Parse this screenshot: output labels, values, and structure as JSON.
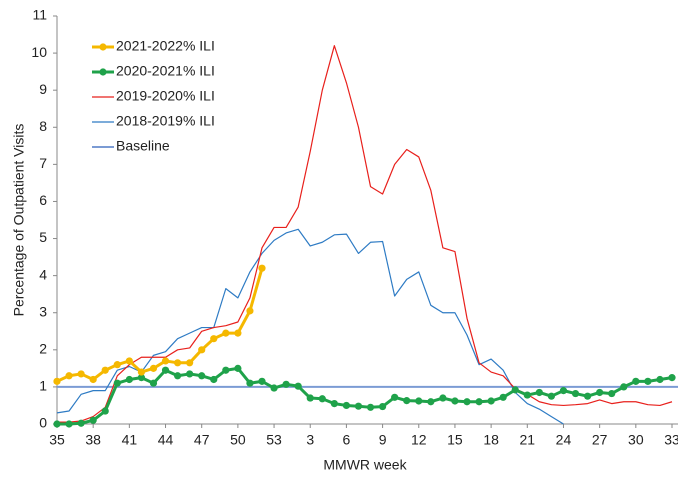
{
  "chart_data": {
    "type": "line",
    "x_label": "MMWR week",
    "y_label": "Percentage of Outpatient Visits",
    "categories": [
      "35",
      null,
      null,
      "38",
      null,
      null,
      "41",
      null,
      null,
      "44",
      null,
      null,
      "47",
      null,
      null,
      "50",
      null,
      null,
      "53",
      null,
      null,
      "3",
      null,
      null,
      "6",
      null,
      null,
      "9",
      null,
      null,
      "12",
      null,
      null,
      "15",
      null,
      null,
      "18",
      null,
      null,
      "21",
      null,
      null,
      "24",
      null,
      null,
      "27",
      null,
      null,
      "30",
      null,
      null,
      "33"
    ],
    "ylim": [
      0,
      11
    ],
    "yticks": [
      0,
      1,
      2,
      3,
      4,
      5,
      6,
      7,
      8,
      9,
      10,
      11
    ],
    "series": [
      {
        "name": "2021-2022% ILI",
        "color": "#f5b800",
        "markers": true,
        "width": 3,
        "values": [
          1.15,
          1.3,
          1.35,
          1.2,
          1.45,
          1.6,
          1.7,
          1.4,
          1.5,
          1.7,
          1.65,
          1.65,
          2.0,
          2.3,
          2.45,
          2.45,
          3.05,
          4.2,
          null,
          null,
          null,
          null,
          null,
          null,
          null,
          null,
          null,
          null,
          null,
          null,
          null,
          null,
          null,
          null,
          null,
          null,
          null,
          null,
          null,
          null,
          null,
          null,
          null,
          null,
          null,
          null,
          null,
          null,
          null,
          null,
          null,
          null
        ]
      },
      {
        "name": "2020-2021% ILI",
        "color": "#1fa24a",
        "markers": true,
        "width": 3,
        "values": [
          0,
          0,
          0.02,
          0.1,
          0.35,
          1.1,
          1.2,
          1.25,
          1.1,
          1.45,
          1.3,
          1.35,
          1.3,
          1.2,
          1.45,
          1.5,
          1.1,
          1.15,
          0.97,
          1.07,
          1.02,
          0.7,
          0.68,
          0.55,
          0.5,
          0.48,
          0.45,
          0.47,
          0.72,
          0.63,
          0.62,
          0.6,
          0.7,
          0.62,
          0.6,
          0.6,
          0.62,
          0.72,
          0.92,
          0.78,
          0.85,
          0.75,
          0.9,
          0.82,
          0.75,
          0.85,
          0.82,
          1.0,
          1.15,
          1.15,
          1.2,
          1.25
        ]
      },
      {
        "name": "2019-2020% ILI",
        "color": "#e8201c",
        "markers": false,
        "width": 1.2,
        "values": [
          0.05,
          0.05,
          0.08,
          0.2,
          0.45,
          1.3,
          1.6,
          1.8,
          1.8,
          1.8,
          2.0,
          2.05,
          2.5,
          2.6,
          2.65,
          2.75,
          3.4,
          4.75,
          5.3,
          5.3,
          5.85,
          7.35,
          9.0,
          10.2,
          9.2,
          8.0,
          6.4,
          6.2,
          7.0,
          7.4,
          7.2,
          6.3,
          4.75,
          4.65,
          2.85,
          1.65,
          1.4,
          1.3,
          0.95,
          0.8,
          0.6,
          0.52,
          0.5,
          0.52,
          0.55,
          0.65,
          0.55,
          0.6,
          0.6,
          0.52,
          0.5,
          0.6
        ]
      },
      {
        "name": "2018-2019% ILI",
        "color": "#2e7bc4",
        "markers": false,
        "width": 1.2,
        "values": [
          0.3,
          0.35,
          0.8,
          0.9,
          0.9,
          1.45,
          1.55,
          1.4,
          1.85,
          1.95,
          2.3,
          2.45,
          2.6,
          2.6,
          3.65,
          3.4,
          4.1,
          4.6,
          4.95,
          5.15,
          5.25,
          4.8,
          4.9,
          5.1,
          5.12,
          4.6,
          4.9,
          4.92,
          3.45,
          3.9,
          4.1,
          3.2,
          3.0,
          3.0,
          2.4,
          1.6,
          1.75,
          1.45,
          0.85,
          0.55,
          0.4,
          0.2,
          0,
          null,
          null,
          null,
          null,
          null,
          null,
          null,
          null,
          null
        ]
      }
    ],
    "baseline": {
      "name": "Baseline",
      "value": 1,
      "color": "#7b9bd4"
    }
  }
}
